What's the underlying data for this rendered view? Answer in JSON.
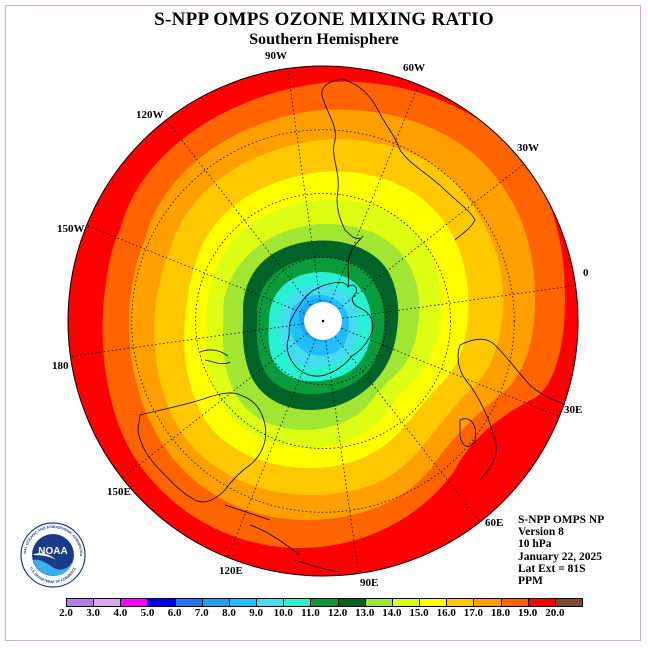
{
  "header": {
    "title": "S-NPP OMPS OZONE MIXING RATIO",
    "subtitle": "Southern Hemisphere"
  },
  "longitude_labels": [
    {
      "id": "90w",
      "text": "90W"
    },
    {
      "id": "60w",
      "text": "60W"
    },
    {
      "id": "30w",
      "text": "30W"
    },
    {
      "id": "0",
      "text": "0"
    },
    {
      "id": "30e",
      "text": "30E"
    },
    {
      "id": "60e",
      "text": "60E"
    },
    {
      "id": "90e",
      "text": "90E"
    },
    {
      "id": "120e",
      "text": "120E"
    },
    {
      "id": "150e",
      "text": "150E"
    },
    {
      "id": "180",
      "text": "180"
    },
    {
      "id": "150w",
      "text": "150W"
    },
    {
      "id": "120w",
      "text": "120W"
    }
  ],
  "info": {
    "product": "S-NPP OMPS NP",
    "version": "Version 8",
    "pressure": "10 hPa",
    "date": "January 22, 2025",
    "lat_ext": "Lat Ext = 81S",
    "units": "PPM"
  },
  "logo": {
    "name": "NOAA",
    "ring_text": "NATIONAL OCEANIC AND ATMOSPHERIC ADMINISTRATION",
    "ring_text_bottom": "U.S. DEPARTMENT OF COMMERCE"
  },
  "colorbar": {
    "ticks": [
      "2.0",
      "3.0",
      "4.0",
      "5.0",
      "6.0",
      "7.0",
      "8.0",
      "9.0",
      "10.0",
      "11.0",
      "12.0",
      "13.0",
      "14.0",
      "15.0",
      "16.0",
      "17.0",
      "18.0",
      "19.0",
      "20.0"
    ],
    "colors": [
      "#b07ee8",
      "#d8a8f0",
      "#ff00ff",
      "#0000e6",
      "#1e78f0",
      "#1ea0f5",
      "#1ebeff",
      "#46dcf0",
      "#28f0d2",
      "#0a9b3c",
      "#006428",
      "#a0e632",
      "#dcff14",
      "#ffff00",
      "#ffc800",
      "#ffa000",
      "#ff6400",
      "#ff0000",
      "#7a4a2a"
    ]
  },
  "map_data": {
    "projection": "south-polar-stereographic",
    "pole_gap_lat": -81,
    "contour_levels": [
      11,
      12,
      13,
      14,
      15,
      16,
      17,
      18,
      19
    ]
  }
}
